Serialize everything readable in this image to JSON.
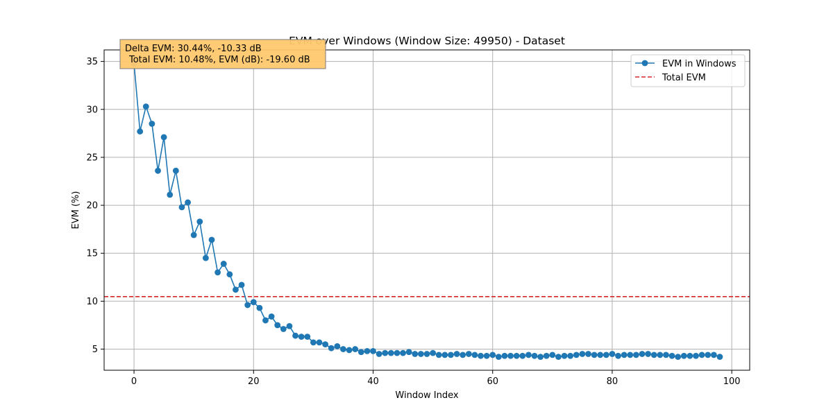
{
  "chart_data": {
    "type": "line",
    "title": "EVM over Windows (Window Size: 49950) - Dataset",
    "xlabel": "Window Index",
    "ylabel": "EVM (%)",
    "xlim": [
      -5,
      103
    ],
    "ylim": [
      2.8,
      36.2
    ],
    "xticks": [
      0,
      20,
      40,
      60,
      80,
      100
    ],
    "yticks": [
      5,
      10,
      15,
      20,
      25,
      30,
      35
    ],
    "grid": true,
    "legend_position": "top-right",
    "series": [
      {
        "name": "EVM in Windows",
        "style": "line with circle markers",
        "color": "#1f77b4",
        "x": [
          0,
          1,
          2,
          3,
          4,
          5,
          6,
          7,
          8,
          9,
          10,
          11,
          12,
          13,
          14,
          15,
          16,
          17,
          18,
          19,
          20,
          21,
          22,
          23,
          24,
          25,
          26,
          27,
          28,
          29,
          30,
          31,
          32,
          33,
          34,
          35,
          36,
          37,
          38,
          39,
          40,
          41,
          42,
          43,
          44,
          45,
          46,
          47,
          48,
          49,
          50,
          51,
          52,
          53,
          54,
          55,
          56,
          57,
          58,
          59,
          60,
          61,
          62,
          63,
          64,
          65,
          66,
          67,
          68,
          69,
          70,
          71,
          72,
          73,
          74,
          75,
          76,
          77,
          78,
          79,
          80,
          81,
          82,
          83,
          84,
          85,
          86,
          87,
          88,
          89,
          90,
          91,
          92,
          93,
          94,
          95,
          96,
          97,
          98
        ],
        "y": [
          34.8,
          27.7,
          30.3,
          28.5,
          23.6,
          27.1,
          21.1,
          23.6,
          19.8,
          20.3,
          16.9,
          18.3,
          14.5,
          16.4,
          13.0,
          13.9,
          12.8,
          11.2,
          11.7,
          9.6,
          9.9,
          9.3,
          8.0,
          8.4,
          7.5,
          7.1,
          7.4,
          6.4,
          6.3,
          6.3,
          5.7,
          5.7,
          5.5,
          5.1,
          5.3,
          5.0,
          4.9,
          5.0,
          4.7,
          4.8,
          4.8,
          4.5,
          4.6,
          4.6,
          4.6,
          4.6,
          4.7,
          4.5,
          4.5,
          4.5,
          4.6,
          4.4,
          4.4,
          4.4,
          4.5,
          4.4,
          4.5,
          4.4,
          4.3,
          4.3,
          4.4,
          4.2,
          4.3,
          4.3,
          4.3,
          4.3,
          4.4,
          4.3,
          4.2,
          4.3,
          4.4,
          4.2,
          4.3,
          4.3,
          4.4,
          4.5,
          4.5,
          4.4,
          4.4,
          4.4,
          4.5,
          4.3,
          4.4,
          4.4,
          4.4,
          4.5,
          4.5,
          4.4,
          4.4,
          4.4,
          4.3,
          4.2,
          4.3,
          4.3,
          4.3,
          4.4,
          4.4,
          4.4,
          4.2
        ]
      },
      {
        "name": "Total EVM",
        "style": "dashed horizontal line",
        "color": "#d62728",
        "value": 10.48
      }
    ],
    "annotation": {
      "line1": "Delta EVM: 30.44%, -10.33 dB",
      "line2": "Total EVM: 10.48%, EVM (dB): -19.60 dB",
      "background": "#ffc86e"
    }
  }
}
